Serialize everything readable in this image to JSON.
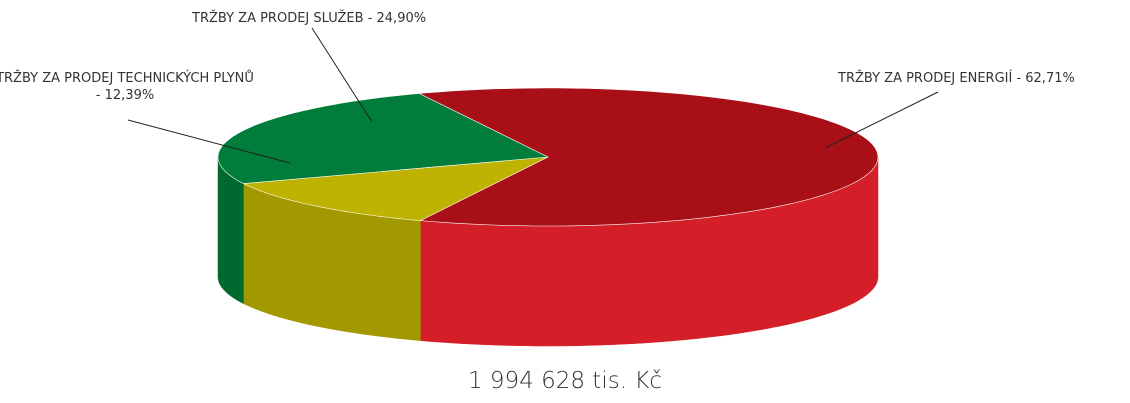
{
  "chart_data": {
    "type": "pie3d",
    "values": [
      62.71,
      12.39,
      24.9
    ],
    "value_labels": [
      "TRŽBY ZA PRODEJ ENERGIÍ - 62,71%",
      "TRŽBY ZA PRODEJ TECHNICKÝCH PLYNŮ - 12,39%",
      "TRŽBY ZA PRODEJ SLUŽEB - 24,90%"
    ],
    "colors": [
      "#a80f17",
      "#bdb300",
      "#007d3a"
    ],
    "side_colors": [
      "#d51f28",
      "#a29900",
      "#00692f"
    ],
    "total_label": "1 994 628 tis. Kč"
  }
}
